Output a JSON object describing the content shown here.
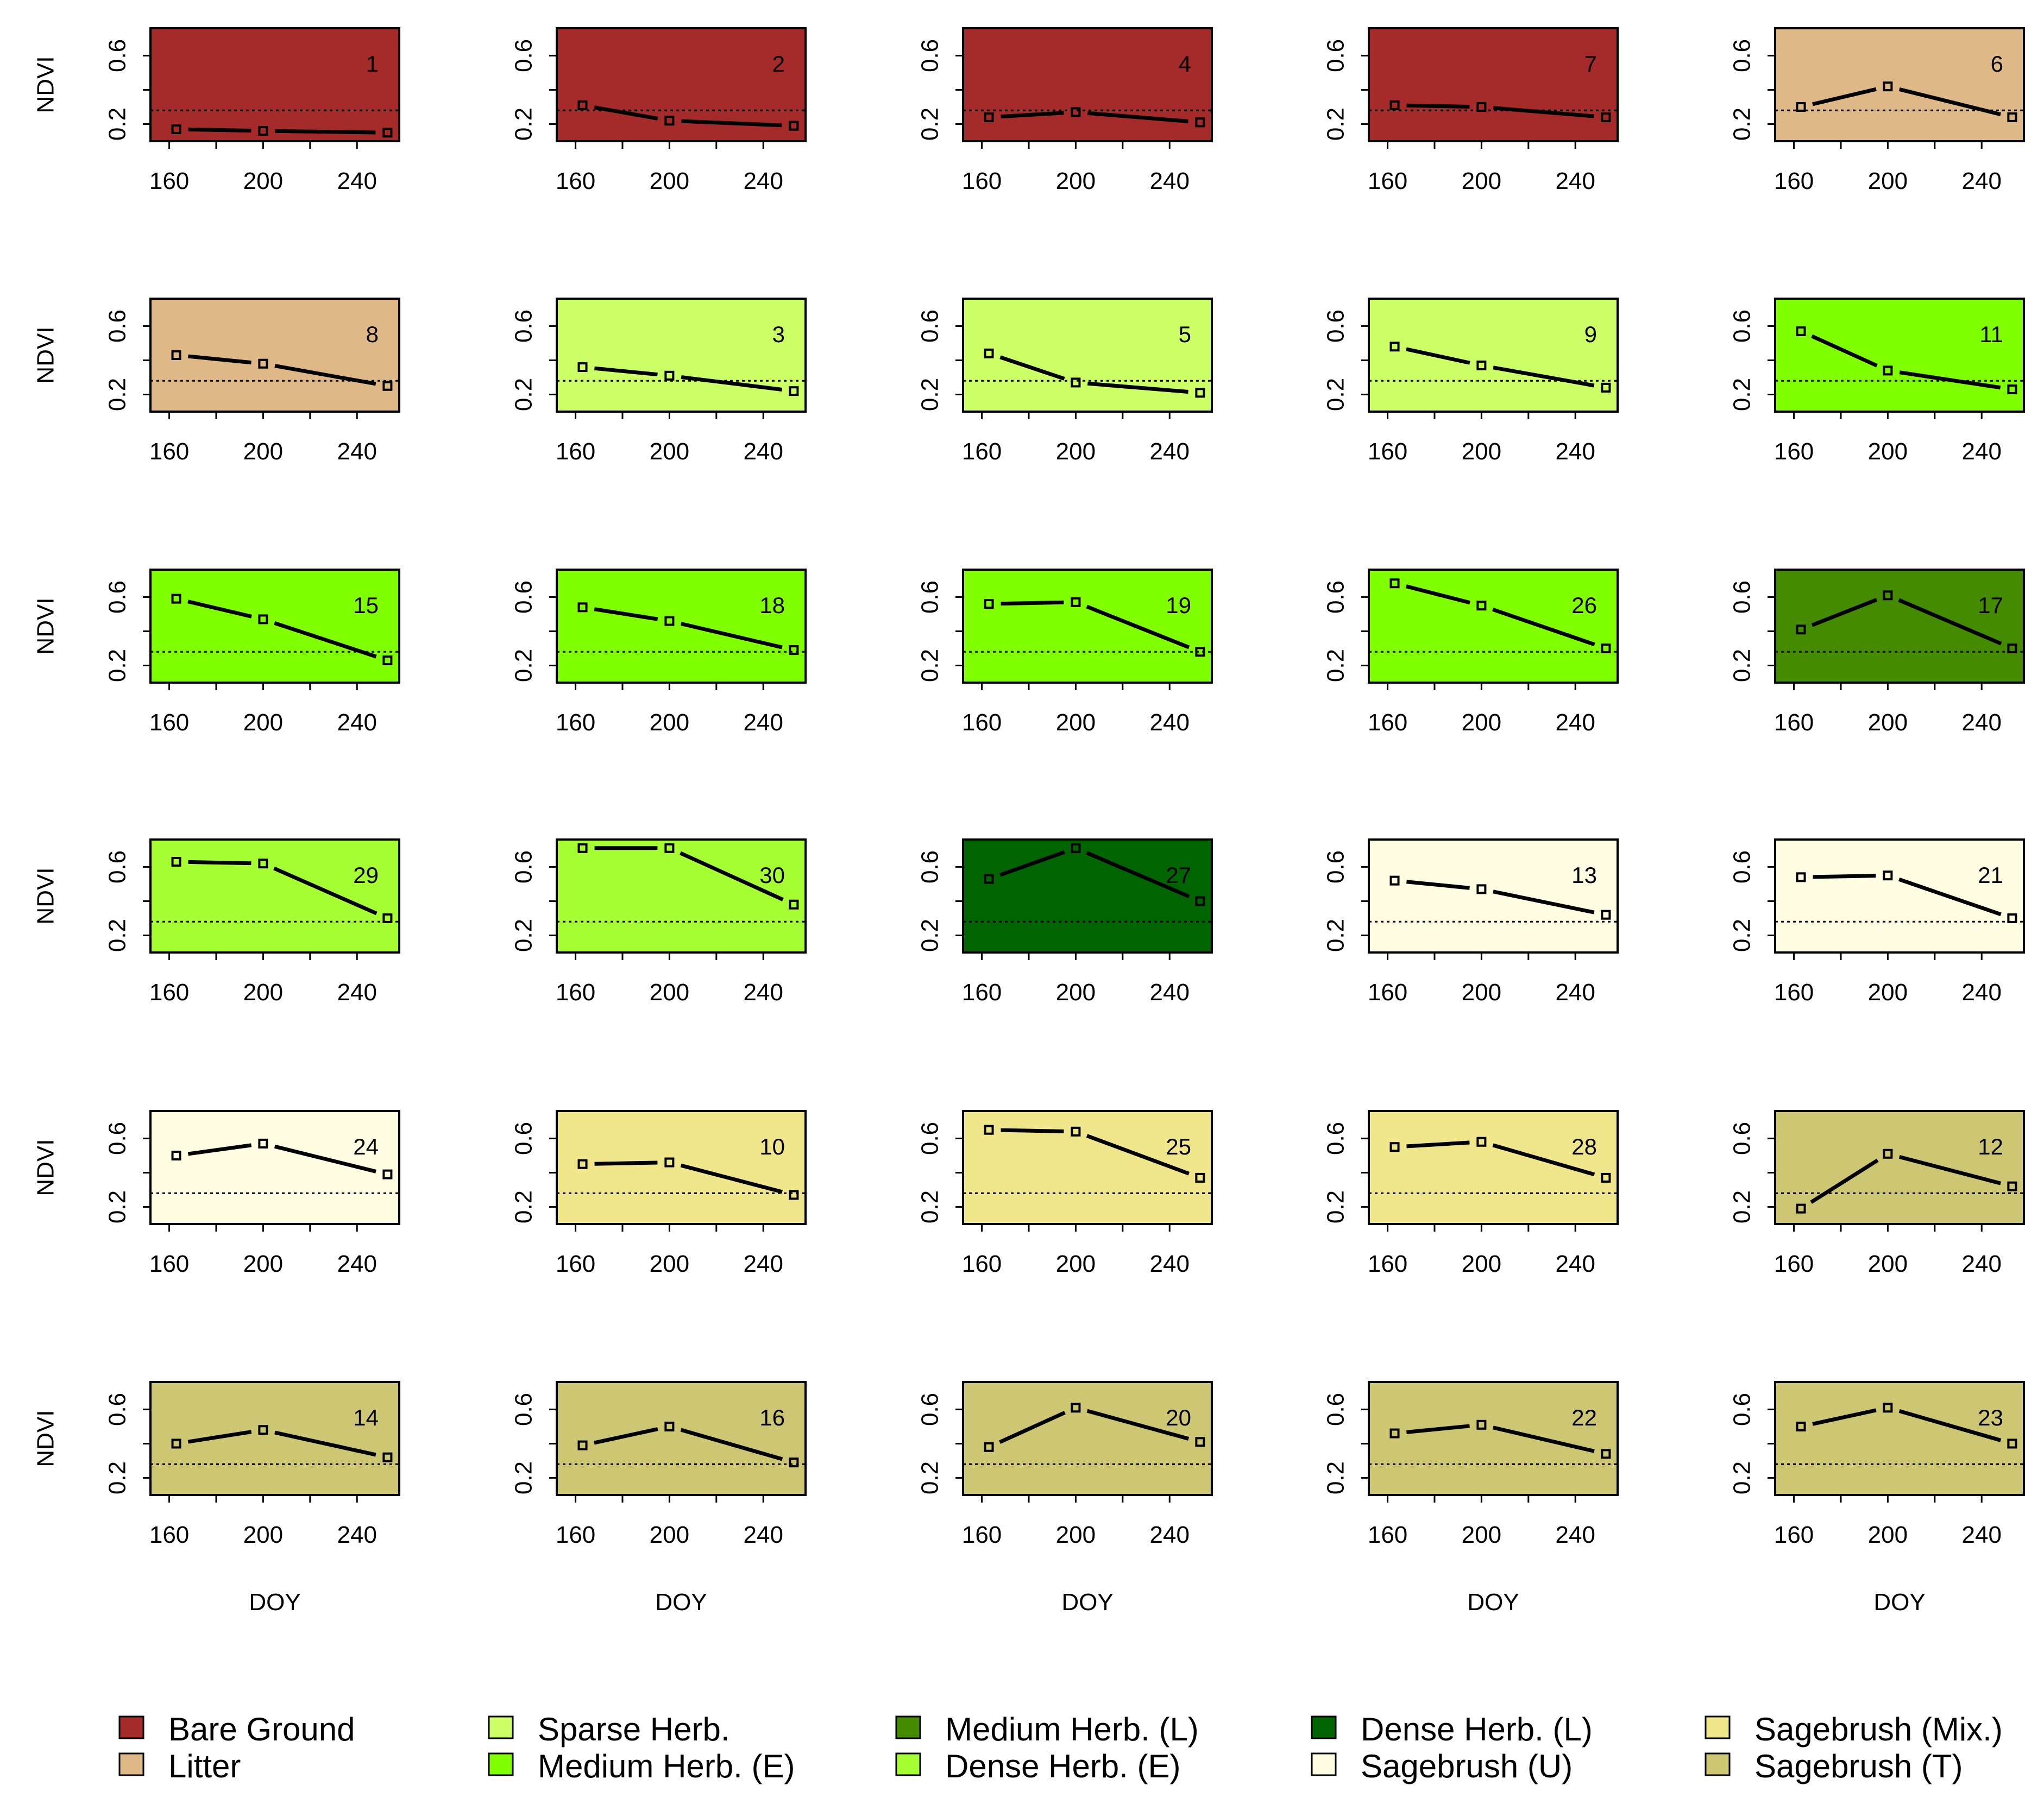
{
  "chart_data": {
    "type": "line",
    "description_axes": {
      "xlabel": "DOY",
      "ylabel": "NDVI",
      "xlim": [
        152,
        258
      ],
      "ylim": [
        0.1,
        0.76
      ],
      "xticks": [
        160,
        200,
        240
      ],
      "xtick_labels": [
        "160",
        "200",
        "240"
      ],
      "yticks": [
        0.2,
        0.6
      ],
      "ytick_labels": [
        "0.2",
        "0.6"
      ],
      "reference_line_ndvi": 0.28
    },
    "classes": [
      {
        "name": "Bare Ground",
        "color": "#A52A2A"
      },
      {
        "name": "Litter",
        "color": "#DEB887"
      },
      {
        "name": "Sparse Herb.",
        "color": "#CCFF66"
      },
      {
        "name": "Medium Herb. (E)",
        "color": "#80FF00"
      },
      {
        "name": "Medium Herb. (L)",
        "color": "#458B00"
      },
      {
        "name": "Dense Herb. (E)",
        "color": "#A6FF33"
      },
      {
        "name": "Dense Herb. (L)",
        "color": "#006400"
      },
      {
        "name": "Sagebrush (U)",
        "color": "#FFFDE1"
      },
      {
        "name": "Sagebrush (Mix.)",
        "color": "#F0E68C"
      },
      {
        "name": "Sagebrush (T)",
        "color": "#CDC673"
      }
    ],
    "doy": [
      163,
      200,
      253
    ],
    "panels": [
      {
        "id": "1",
        "class": 0,
        "values": [
          0.17,
          0.16,
          0.15
        ]
      },
      {
        "id": "2",
        "class": 0,
        "values": [
          0.31,
          0.22,
          0.19
        ]
      },
      {
        "id": "4",
        "class": 0,
        "values": [
          0.24,
          0.27,
          0.21
        ]
      },
      {
        "id": "7",
        "class": 0,
        "values": [
          0.31,
          0.3,
          0.24
        ]
      },
      {
        "id": "6",
        "class": 1,
        "values": [
          0.3,
          0.42,
          0.24
        ]
      },
      {
        "id": "8",
        "class": 1,
        "values": [
          0.43,
          0.38,
          0.25
        ]
      },
      {
        "id": "3",
        "class": 2,
        "values": [
          0.36,
          0.31,
          0.22
        ]
      },
      {
        "id": "5",
        "class": 2,
        "values": [
          0.44,
          0.27,
          0.21
        ]
      },
      {
        "id": "9",
        "class": 2,
        "values": [
          0.48,
          0.37,
          0.24
        ]
      },
      {
        "id": "11",
        "class": 3,
        "values": [
          0.57,
          0.34,
          0.23
        ]
      },
      {
        "id": "15",
        "class": 3,
        "values": [
          0.59,
          0.47,
          0.23
        ]
      },
      {
        "id": "18",
        "class": 3,
        "values": [
          0.54,
          0.46,
          0.29
        ]
      },
      {
        "id": "19",
        "class": 3,
        "values": [
          0.56,
          0.57,
          0.28
        ]
      },
      {
        "id": "26",
        "class": 3,
        "values": [
          0.68,
          0.55,
          0.3
        ]
      },
      {
        "id": "17",
        "class": 4,
        "values": [
          0.41,
          0.61,
          0.3
        ]
      },
      {
        "id": "29",
        "class": 5,
        "values": [
          0.63,
          0.62,
          0.3
        ]
      },
      {
        "id": "30",
        "class": 5,
        "values": [
          0.71,
          0.71,
          0.38
        ]
      },
      {
        "id": "27",
        "class": 6,
        "values": [
          0.53,
          0.71,
          0.4
        ]
      },
      {
        "id": "13",
        "class": 7,
        "values": [
          0.52,
          0.47,
          0.32
        ]
      },
      {
        "id": "21",
        "class": 7,
        "values": [
          0.54,
          0.55,
          0.3
        ]
      },
      {
        "id": "24",
        "class": 7,
        "values": [
          0.5,
          0.57,
          0.39
        ]
      },
      {
        "id": "10",
        "class": 8,
        "values": [
          0.45,
          0.46,
          0.27
        ]
      },
      {
        "id": "25",
        "class": 8,
        "values": [
          0.65,
          0.64,
          0.37
        ]
      },
      {
        "id": "28",
        "class": 8,
        "values": [
          0.55,
          0.58,
          0.37
        ]
      },
      {
        "id": "12",
        "class": 9,
        "values": [
          0.19,
          0.51,
          0.32
        ]
      },
      {
        "id": "14",
        "class": 9,
        "values": [
          0.4,
          0.48,
          0.32
        ]
      },
      {
        "id": "16",
        "class": 9,
        "values": [
          0.39,
          0.5,
          0.29
        ]
      },
      {
        "id": "20",
        "class": 9,
        "values": [
          0.38,
          0.61,
          0.41
        ]
      },
      {
        "id": "22",
        "class": 9,
        "values": [
          0.46,
          0.51,
          0.34
        ]
      },
      {
        "id": "23",
        "class": 9,
        "values": [
          0.5,
          0.61,
          0.4
        ]
      }
    ]
  }
}
